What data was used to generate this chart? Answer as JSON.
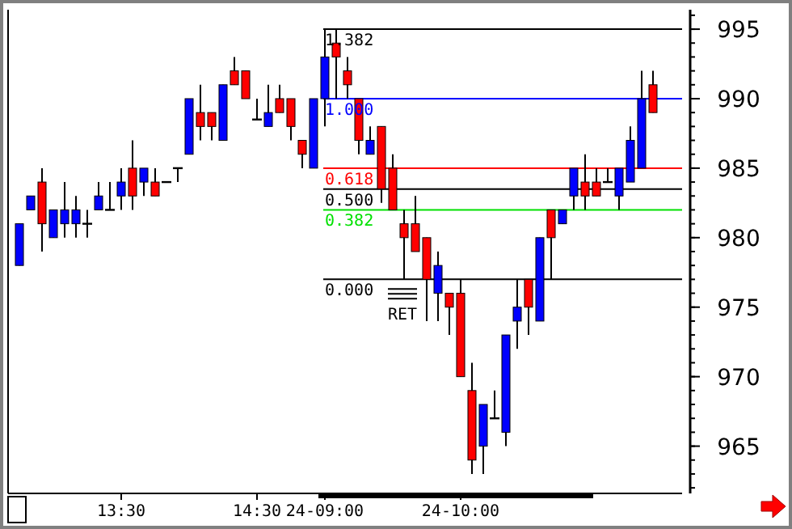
{
  "chart_data": {
    "type": "candlestick",
    "categories": [
      null,
      null,
      null,
      null,
      null,
      null,
      null,
      null,
      null,
      "13:30",
      null,
      null,
      null,
      null,
      null,
      null,
      null,
      null,
      null,
      null,
      null,
      "14:30",
      null,
      null,
      null,
      null,
      null,
      "24-09:00",
      null,
      null,
      null,
      null,
      null,
      null,
      null,
      null,
      null,
      null,
      null,
      "24-10:00",
      null,
      null,
      null,
      null,
      null,
      null,
      null,
      null,
      null,
      null,
      null,
      null,
      null,
      null,
      null,
      null,
      null
    ],
    "ohlc": [
      [
        978,
        981,
        978,
        981
      ],
      [
        982,
        983,
        982,
        983
      ],
      [
        984,
        985,
        979,
        981
      ],
      [
        980,
        982,
        980,
        982
      ],
      [
        981,
        984,
        980,
        982
      ],
      [
        981,
        983,
        980,
        982
      ],
      [
        981,
        982,
        980,
        981
      ],
      [
        982,
        984,
        982,
        983
      ],
      [
        982,
        984,
        982,
        982
      ],
      [
        983,
        985,
        982,
        984
      ],
      [
        985,
        987,
        982,
        983
      ],
      [
        984,
        985,
        983,
        985
      ],
      [
        984,
        985,
        983,
        983
      ],
      [
        984,
        984,
        984,
        984
      ],
      [
        985,
        985,
        984,
        985
      ],
      [
        986,
        990,
        986,
        990
      ],
      [
        989,
        991,
        987,
        988
      ],
      [
        989,
        989,
        987,
        988
      ],
      [
        987,
        991,
        987,
        991
      ],
      [
        992,
        993,
        991,
        991
      ],
      [
        992,
        992,
        990,
        990
      ],
      [
        988.5,
        990,
        988.5,
        988.5
      ],
      [
        988,
        991,
        988,
        989
      ],
      [
        990,
        991,
        989,
        989
      ],
      [
        990,
        990,
        987,
        988
      ],
      [
        987,
        987,
        985,
        986
      ],
      [
        985,
        990,
        985,
        990
      ],
      [
        990,
        995,
        988,
        993
      ],
      [
        994,
        995,
        990,
        993
      ],
      [
        992,
        993,
        990,
        991
      ],
      [
        990,
        990,
        986,
        987
      ],
      [
        986,
        988,
        986,
        987
      ],
      [
        988,
        988,
        982.5,
        983.5
      ],
      [
        985,
        986,
        982,
        982
      ],
      [
        981,
        982,
        977,
        980
      ],
      [
        981,
        983,
        979,
        979
      ],
      [
        980,
        980,
        974,
        977
      ],
      [
        976,
        979,
        974,
        978
      ],
      [
        976,
        976,
        973,
        975
      ],
      [
        976,
        977,
        970,
        970
      ],
      [
        969,
        971,
        963,
        964
      ],
      [
        965,
        968,
        963,
        968
      ],
      [
        967,
        969,
        967,
        967
      ],
      [
        966,
        973,
        965,
        973
      ],
      [
        974,
        977,
        972,
        975
      ],
      [
        977,
        977,
        973,
        975
      ],
      [
        974,
        980,
        974,
        980
      ],
      [
        982,
        982,
        977,
        980
      ],
      [
        981,
        982,
        981,
        982
      ],
      [
        983,
        985,
        982,
        985
      ],
      [
        984,
        986,
        982,
        983
      ],
      [
        984,
        985,
        983,
        983
      ],
      [
        984,
        985,
        984,
        984
      ],
      [
        983,
        985,
        982,
        985
      ],
      [
        984,
        988,
        984,
        987
      ],
      [
        985,
        992,
        985,
        990
      ],
      [
        991,
        992,
        989,
        989
      ]
    ],
    "colors": [
      "#0000ff",
      "#0000ff",
      "#ff0000",
      "#0000ff",
      "#0000ff",
      "#0000ff",
      "#000000",
      "#0000ff",
      "#000000",
      "#0000ff",
      "#ff0000",
      "#0000ff",
      "#ff0000",
      "#000000",
      "#000000",
      "#0000ff",
      "#ff0000",
      "#ff0000",
      "#0000ff",
      "#ff0000",
      "#ff0000",
      "#000000",
      "#0000ff",
      "#ff0000",
      "#ff0000",
      "#ff0000",
      "#0000ff",
      "#0000ff",
      "#ff0000",
      "#ff0000",
      "#ff0000",
      "#0000ff",
      "#ff0000",
      "#ff0000",
      "#ff0000",
      "#ff0000",
      "#ff0000",
      "#0000ff",
      "#ff0000",
      "#ff0000",
      "#ff0000",
      "#0000ff",
      "#000000",
      "#0000ff",
      "#0000ff",
      "#ff0000",
      "#0000ff",
      "#ff0000",
      "#0000ff",
      "#0000ff",
      "#ff0000",
      "#ff0000",
      "#000000",
      "#0000ff",
      "#0000ff",
      "#0000ff",
      "#ff0000"
    ],
    "ylim": [
      961.6,
      996.4
    ],
    "yticks": [
      965,
      970,
      975,
      980,
      985,
      990,
      995
    ],
    "ref_lines": [
      {
        "axis": "y",
        "value": 995,
        "color": "#000000"
      },
      {
        "axis": "y",
        "value": 990,
        "color": "#0000ff"
      },
      {
        "axis": "y",
        "value": 985,
        "color": "#ff0000"
      },
      {
        "axis": "y",
        "value": 983.5,
        "color": "#000000"
      },
      {
        "axis": "y",
        "value": 982,
        "color": "#00e000"
      },
      {
        "axis": "y",
        "value": 977,
        "color": "#000000"
      }
    ],
    "annotations": [
      {
        "text": "1.382",
        "y": 995
      },
      {
        "text": "1.000",
        "y": 990
      },
      {
        "text": "0.618",
        "y": 985
      },
      {
        "text": "0.500",
        "y": 983.5
      },
      {
        "text": "0.382",
        "y": 982
      },
      {
        "text": "0.000",
        "y": 977
      },
      "RET"
    ]
  }
}
